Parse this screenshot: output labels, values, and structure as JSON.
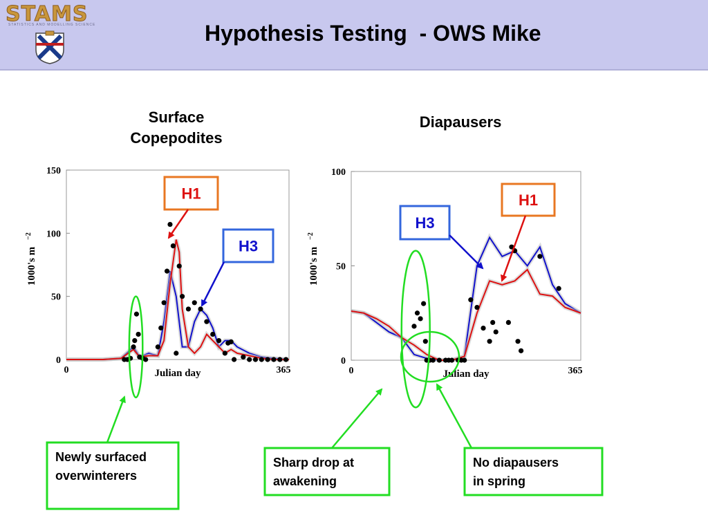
{
  "slide": {
    "title": "Hypothesis Testing  - OWS Mike",
    "logo_text": "STAMS",
    "logo_subtext": "STATISTICS AND MODELLING SCIENCE",
    "colors": {
      "header_bg": "#c8c8ee",
      "callout_green": "#22dd22",
      "h1_red": "#dd1111",
      "h3_blue": "#1111cc",
      "h1_box_border": "#e87722",
      "h3_box_border": "#3366dd"
    }
  },
  "panels": {
    "left_title_line1": "Surface",
    "left_title_line2": "Copepodites",
    "right_title": "Diapausers"
  },
  "callouts": {
    "left": [
      "Newly surfaced",
      "overwinterers"
    ],
    "middle": [
      "Sharp drop at",
      "awakening"
    ],
    "right": [
      "No diapausers",
      "in spring"
    ]
  },
  "chart_data": [
    {
      "type": "line",
      "title": "Surface Copepodites",
      "xlabel": "Julian day",
      "ylabel": "1000's m",
      "ylabel_exponent": "−2",
      "xlim": [
        0,
        365
      ],
      "ylim": [
        0,
        150
      ],
      "xticks": [
        0,
        365
      ],
      "yticks": [
        0,
        50,
        100,
        150
      ],
      "series": [
        {
          "name": "H3",
          "color": "#1111cc",
          "x": [
            0,
            60,
            90,
            110,
            120,
            135,
            150,
            160,
            170,
            180,
            190,
            200,
            210,
            220,
            230,
            240,
            250,
            260,
            270,
            280,
            300,
            320,
            340,
            365
          ],
          "y": [
            0,
            0,
            1,
            10,
            2,
            5,
            3,
            30,
            70,
            50,
            10,
            10,
            30,
            40,
            35,
            25,
            10,
            15,
            15,
            10,
            5,
            2,
            1,
            0
          ]
        },
        {
          "name": "H1",
          "color": "#dd1111",
          "x": [
            0,
            60,
            90,
            110,
            120,
            135,
            150,
            160,
            170,
            180,
            185,
            190,
            200,
            210,
            220,
            230,
            240,
            250,
            260,
            270,
            280,
            300,
            320,
            340,
            365
          ],
          "y": [
            0,
            0,
            1,
            8,
            2,
            3,
            3,
            15,
            60,
            95,
            85,
            40,
            10,
            5,
            10,
            20,
            15,
            10,
            5,
            8,
            5,
            3,
            1,
            0,
            0
          ]
        }
      ],
      "points": {
        "x": [
          95,
          100,
          105,
          110,
          112,
          115,
          118,
          120,
          125,
          130,
          150,
          155,
          160,
          165,
          170,
          175,
          180,
          185,
          190,
          200,
          210,
          220,
          230,
          240,
          250,
          260,
          265,
          270,
          275,
          290,
          300,
          310,
          320,
          330,
          340,
          350,
          360
        ],
        "y": [
          0,
          0,
          1,
          10,
          15,
          36,
          20,
          2,
          1,
          0,
          10,
          25,
          45,
          70,
          107,
          90,
          5,
          74,
          50,
          40,
          45,
          40,
          30,
          20,
          15,
          5,
          13,
          14,
          0,
          2,
          0,
          0,
          0,
          0,
          0,
          0,
          0
        ]
      },
      "annotation_ellipse": {
        "x_range": [
          103,
          125
        ],
        "y_range": [
          -30,
          50
        ]
      }
    },
    {
      "type": "line",
      "title": "Diapausers",
      "xlabel": "Julian day",
      "ylabel": "1000's m",
      "ylabel_exponent": "−2",
      "xlim": [
        0,
        365
      ],
      "ylim": [
        0,
        100
      ],
      "xticks": [
        0,
        365
      ],
      "yticks": [
        0,
        50,
        100
      ],
      "series": [
        {
          "name": "H3",
          "color": "#1111cc",
          "x": [
            0,
            20,
            40,
            60,
            80,
            100,
            120,
            140,
            160,
            180,
            200,
            220,
            240,
            260,
            280,
            300,
            320,
            340,
            365
          ],
          "y": [
            26,
            25,
            20,
            15,
            12,
            3,
            1,
            0,
            0,
            2,
            50,
            65,
            55,
            58,
            50,
            60,
            40,
            30,
            25
          ]
        },
        {
          "name": "H1",
          "color": "#dd1111",
          "x": [
            0,
            20,
            40,
            60,
            80,
            100,
            120,
            140,
            160,
            180,
            200,
            220,
            240,
            260,
            280,
            300,
            320,
            340,
            365
          ],
          "y": [
            26,
            25,
            22,
            18,
            12,
            8,
            3,
            0,
            0,
            2,
            25,
            42,
            40,
            42,
            48,
            35,
            34,
            28,
            25
          ]
        }
      ],
      "points": {
        "x": [
          100,
          105,
          110,
          115,
          118,
          120,
          125,
          130,
          140,
          150,
          155,
          160,
          170,
          175,
          180,
          190,
          200,
          210,
          220,
          225,
          230,
          250,
          255,
          260,
          265,
          270,
          300,
          330
        ],
        "y": [
          18,
          25,
          22,
          30,
          10,
          0,
          0,
          0,
          0,
          0,
          0,
          0,
          0,
          0,
          0,
          32,
          28,
          17,
          10,
          20,
          15,
          20,
          60,
          58,
          10,
          5,
          55,
          38
        ]
      },
      "annotation_ellipse": {
        "x_range": [
          80,
          125
        ],
        "y_range": [
          -25,
          58
        ]
      }
    }
  ]
}
